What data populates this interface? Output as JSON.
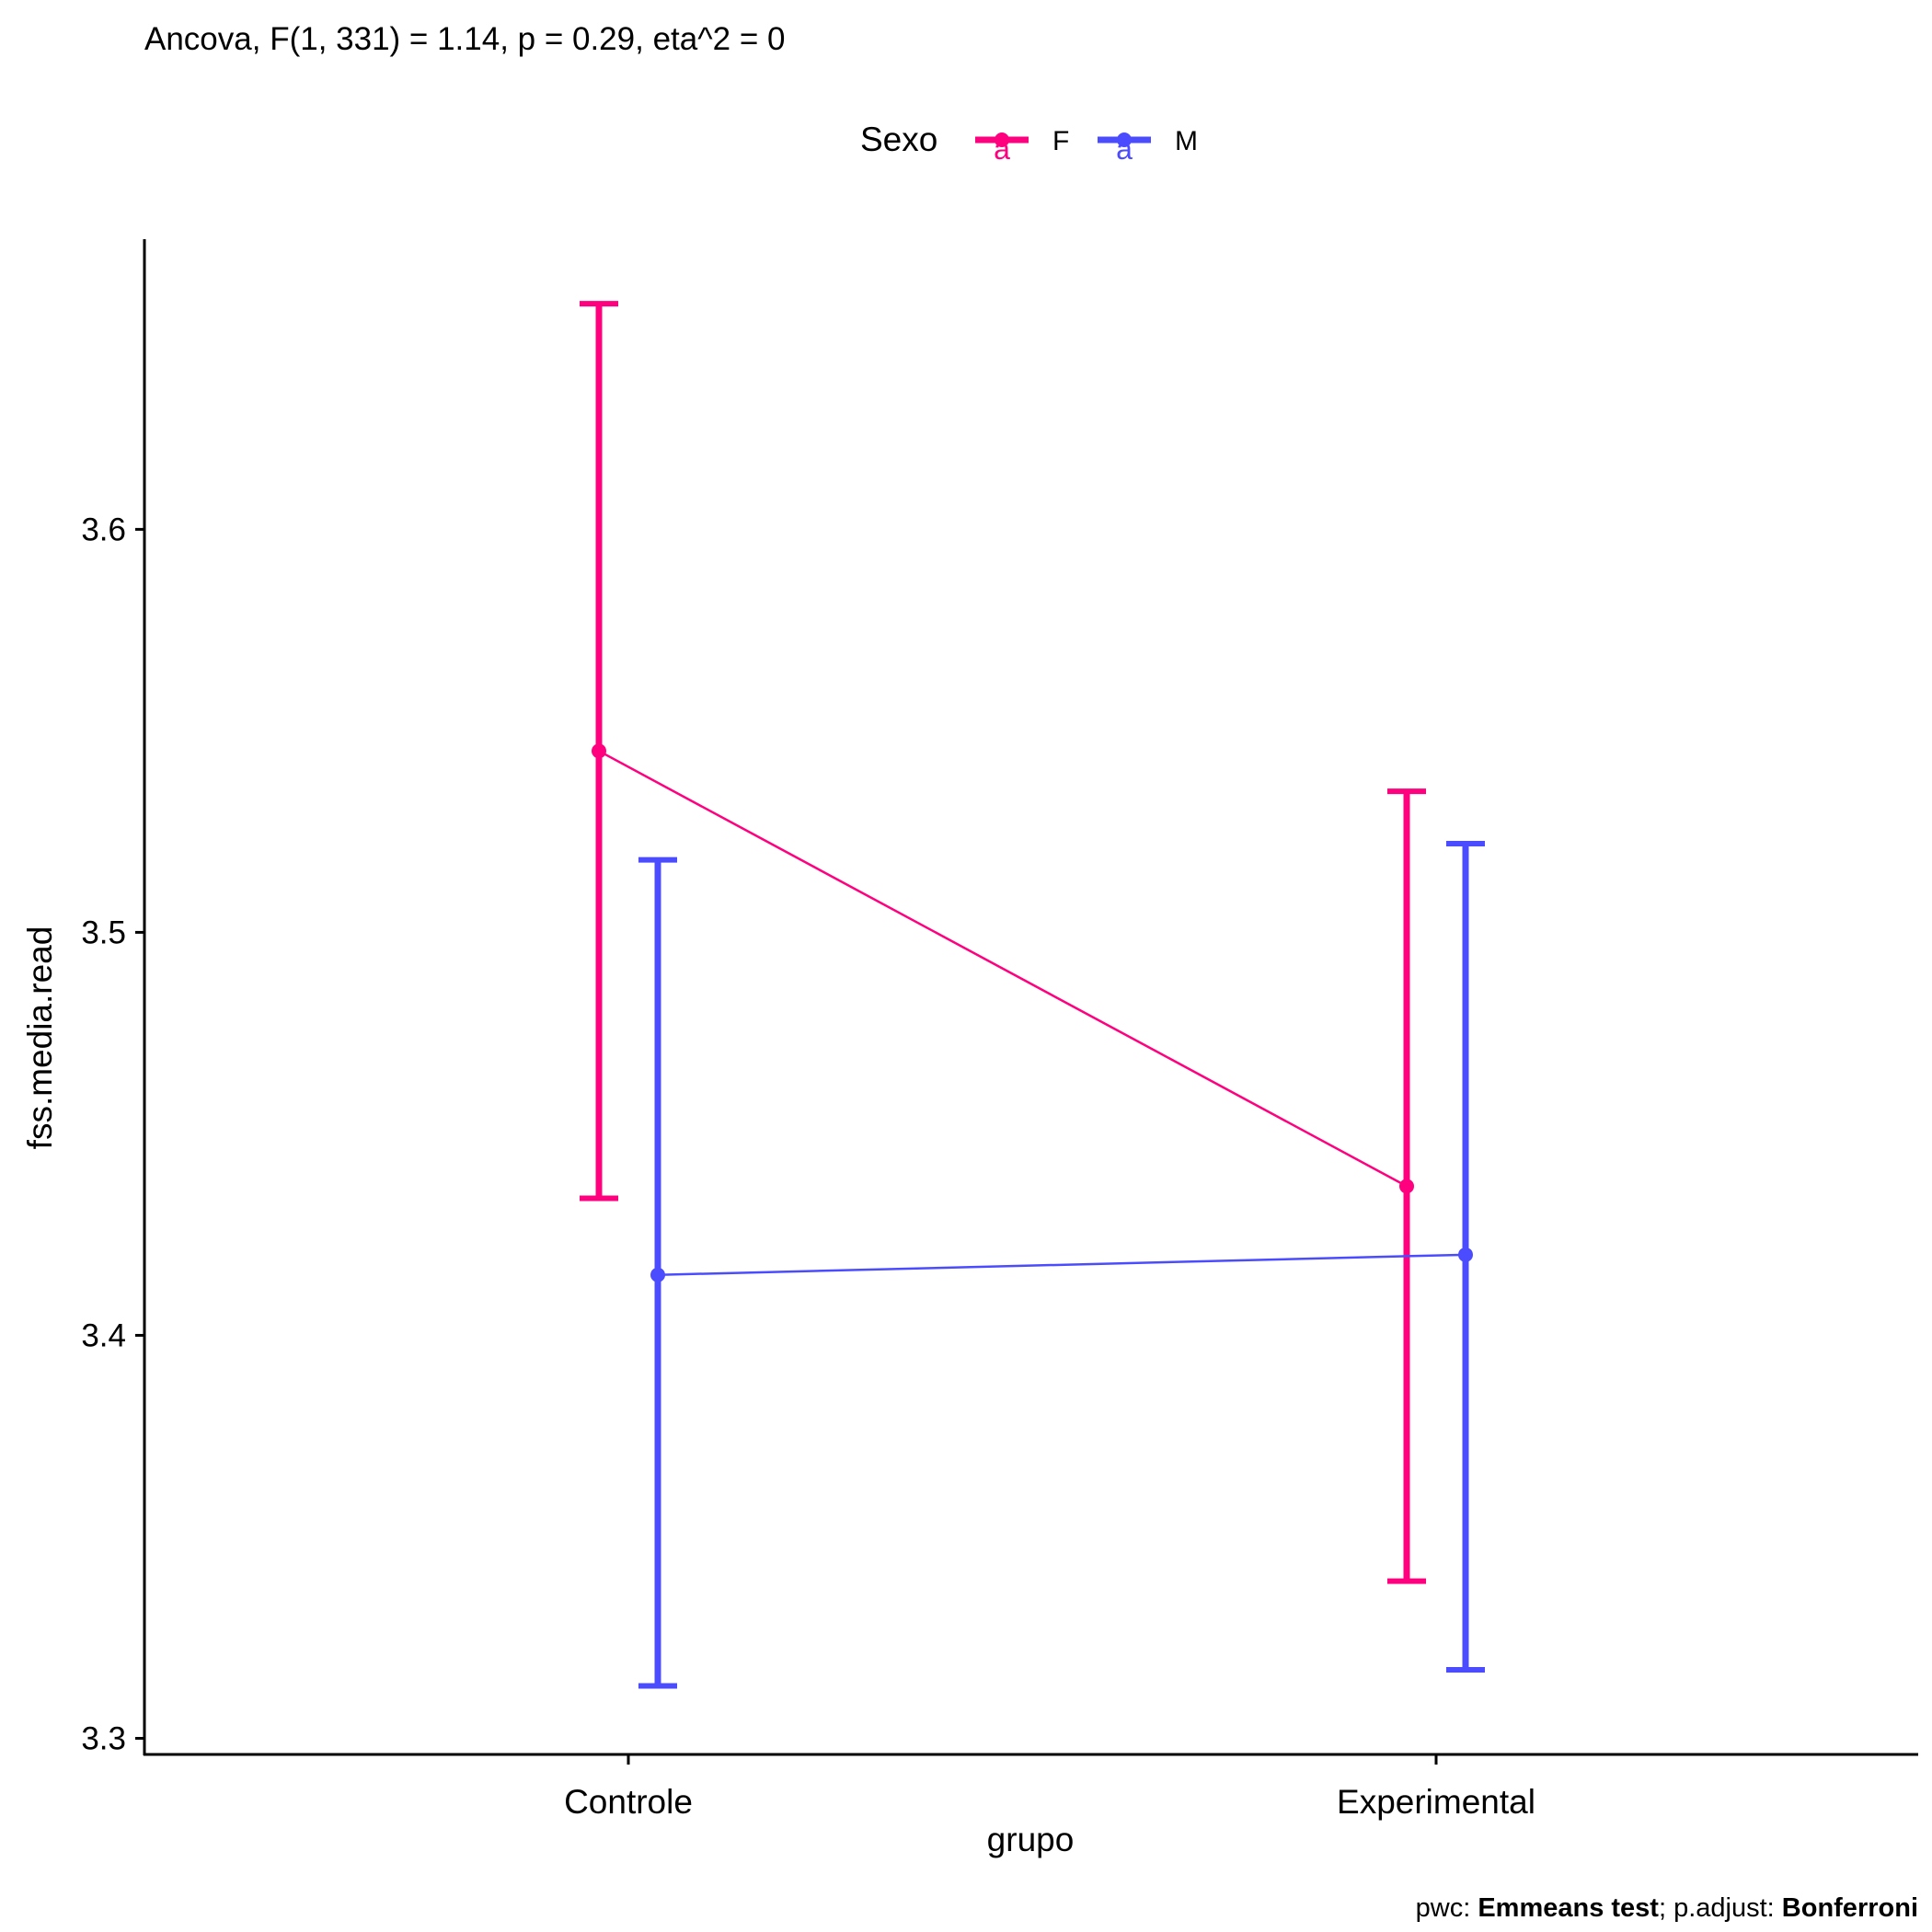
{
  "chart_data": {
    "type": "line",
    "title": "Ancova, F(1, 331) = 1.14, p = 0.29, eta^2 = 0",
    "xlabel": "grupo",
    "ylabel": "fss.media.read",
    "categories": [
      "Controle",
      "Experimental"
    ],
    "ylim": [
      3.296,
      3.672
    ],
    "yticks": [
      3.3,
      3.4,
      3.5,
      3.6
    ],
    "ytick_labels": [
      "3.3",
      "3.4",
      "3.5",
      "3.6"
    ],
    "legend": {
      "title": "Sexo",
      "position": "top",
      "entries": [
        "F",
        "M"
      ],
      "key_glyph": "a"
    },
    "series": [
      {
        "name": "F",
        "color": "#FF007F",
        "values": [
          3.545,
          3.437
        ],
        "lower": [
          3.434,
          3.339
        ],
        "upper": [
          3.656,
          3.535
        ]
      },
      {
        "name": "M",
        "color": "#4C4CFF",
        "values": [
          3.415,
          3.42
        ],
        "lower": [
          3.313,
          3.317
        ],
        "upper": [
          3.518,
          3.522
        ]
      }
    ],
    "grid": false,
    "caption": {
      "prefix": "pwc: ",
      "method": "Emmeans test",
      "middle": "; p.adjust: ",
      "adjust": "Bonferroni"
    }
  }
}
